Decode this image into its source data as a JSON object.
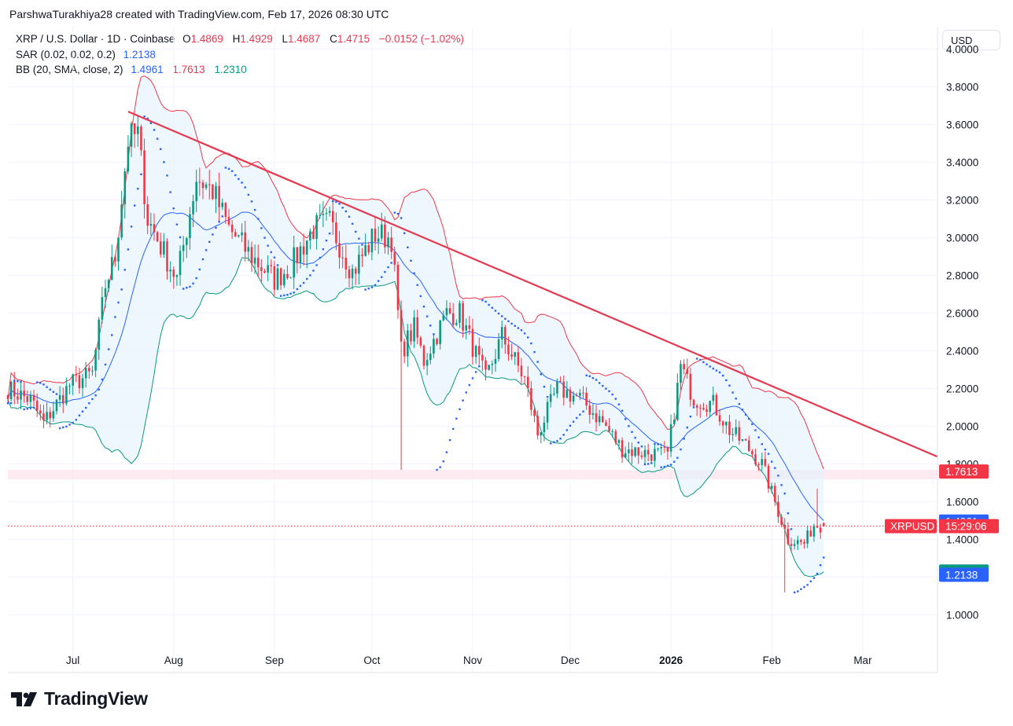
{
  "attribution": "ParshwaTurakhiya28 created with TradingView.com, Feb 17, 2026 08:30 UTC",
  "legend": {
    "symbol": "XRP / U.S. Dollar · 1D · Coinbase",
    "ohlc": [
      {
        "label": "O",
        "value": "1.4869"
      },
      {
        "label": "H",
        "value": "1.4929"
      },
      {
        "label": "L",
        "value": "1.4687"
      },
      {
        "label": "C",
        "value": "1.4715"
      }
    ],
    "change": "−0.0152 (−1.02%)",
    "sar_label": "SAR (0.02, 0.02, 0.2)",
    "sar_value": "1.2138",
    "bb_label": "BB (20, SMA, close, 2)",
    "bb_basis": "1.4961",
    "bb_upper": "1.7613",
    "bb_lower": "1.2310"
  },
  "currency_button": "USD",
  "logo_text": "TradingView",
  "price_tags": {
    "bb_upper": "1.7613",
    "bb_basis": "1.4961",
    "symbol": "XRPUSD",
    "countdown": "15:29:06",
    "bb_lower": "1.2310",
    "sar": "1.2138"
  },
  "colors": {
    "up": "#089981",
    "down": "#f23645",
    "bb_basis": "#2962ff",
    "bb_upper": "#f23645",
    "bb_lower": "#089981",
    "bb_fill": "#e3f2fd",
    "sar": "#2962ff",
    "trendline": "#e53950",
    "zone": "#fce4ec"
  },
  "chart_data": {
    "type": "candlestick",
    "symbol": "XRPUSD",
    "timeframe": "1D",
    "y_axis": {
      "ticks": [
        "4.0000",
        "3.8000",
        "3.6000",
        "3.4000",
        "3.2000",
        "3.0000",
        "2.8000",
        "2.6000",
        "2.4000",
        "2.2000",
        "2.0000",
        "1.8000",
        "1.6000",
        "1.4000",
        "1.2000",
        "1.0000"
      ],
      "range": [
        0.82,
        4.12
      ]
    },
    "x_axis": {
      "start_date": "2025-06-11",
      "end_date": "2026-03-24",
      "ticks": [
        {
          "label": "Jul",
          "date": "2025-07-01",
          "bold": false
        },
        {
          "label": "Aug",
          "date": "2025-08-01",
          "bold": false
        },
        {
          "label": "Sep",
          "date": "2025-09-01",
          "bold": false
        },
        {
          "label": "Oct",
          "date": "2025-10-01",
          "bold": false
        },
        {
          "label": "Nov",
          "date": "2025-11-01",
          "bold": false
        },
        {
          "label": "Dec",
          "date": "2025-12-01",
          "bold": false
        },
        {
          "label": "2026",
          "date": "2026-01-01",
          "bold": true
        },
        {
          "label": "Feb",
          "date": "2026-02-01",
          "bold": false
        },
        {
          "label": "Mar",
          "date": "2026-03-01",
          "bold": false
        }
      ]
    },
    "price_anchors": [
      {
        "date": "2025-06-11",
        "close": 2.2
      },
      {
        "date": "2025-06-18",
        "close": 2.14
      },
      {
        "date": "2025-06-22",
        "close": 2.02
      },
      {
        "date": "2025-06-30",
        "close": 2.22
      },
      {
        "date": "2025-07-07",
        "close": 2.28
      },
      {
        "date": "2025-07-11",
        "close": 2.75
      },
      {
        "date": "2025-07-14",
        "close": 2.9
      },
      {
        "date": "2025-07-18",
        "close": 3.52
      },
      {
        "date": "2025-07-21",
        "close": 3.55
      },
      {
        "date": "2025-07-24",
        "close": 3.1
      },
      {
        "date": "2025-08-02",
        "close": 2.78
      },
      {
        "date": "2025-08-08",
        "close": 3.32
      },
      {
        "date": "2025-08-13",
        "close": 3.25
      },
      {
        "date": "2025-08-18",
        "close": 3.05
      },
      {
        "date": "2025-08-25",
        "close": 2.9
      },
      {
        "date": "2025-09-01",
        "close": 2.78
      },
      {
        "date": "2025-09-06",
        "close": 2.85
      },
      {
        "date": "2025-09-13",
        "close": 3.05
      },
      {
        "date": "2025-09-18",
        "close": 3.08
      },
      {
        "date": "2025-09-25",
        "close": 2.82
      },
      {
        "date": "2025-10-02",
        "close": 3.02
      },
      {
        "date": "2025-10-07",
        "close": 3.0
      },
      {
        "date": "2025-10-10",
        "close": 2.4
      },
      {
        "date": "2025-10-14",
        "close": 2.52
      },
      {
        "date": "2025-10-17",
        "close": 2.35
      },
      {
        "date": "2025-10-24",
        "close": 2.6
      },
      {
        "date": "2025-10-28",
        "close": 2.6
      },
      {
        "date": "2025-11-05",
        "close": 2.25
      },
      {
        "date": "2025-11-10",
        "close": 2.48
      },
      {
        "date": "2025-11-17",
        "close": 2.25
      },
      {
        "date": "2025-11-21",
        "close": 1.96
      },
      {
        "date": "2025-11-27",
        "close": 2.2
      },
      {
        "date": "2025-12-04",
        "close": 2.15
      },
      {
        "date": "2025-12-11",
        "close": 2.02
      },
      {
        "date": "2025-12-17",
        "close": 1.88
      },
      {
        "date": "2025-12-24",
        "close": 1.86
      },
      {
        "date": "2025-12-31",
        "close": 1.85
      },
      {
        "date": "2026-01-04",
        "close": 2.32
      },
      {
        "date": "2026-01-08",
        "close": 2.15
      },
      {
        "date": "2026-01-14",
        "close": 2.12
      },
      {
        "date": "2026-01-19",
        "close": 1.98
      },
      {
        "date": "2026-01-24",
        "close": 1.9
      },
      {
        "date": "2026-01-29",
        "close": 1.8
      },
      {
        "date": "2026-02-03",
        "close": 1.55
      },
      {
        "date": "2026-02-06",
        "close": 1.4
      },
      {
        "date": "2026-02-11",
        "close": 1.38
      },
      {
        "date": "2026-02-14",
        "close": 1.48
      },
      {
        "date": "2026-02-17",
        "close": 1.4715
      }
    ],
    "last_candle": {
      "date": "2026-02-17",
      "open": 1.4869,
      "high": 1.4929,
      "low": 1.4687,
      "close": 1.4715
    },
    "wicks": [
      {
        "date": "2025-10-10",
        "low": 1.77
      },
      {
        "date": "2026-02-05",
        "low": 1.12
      },
      {
        "date": "2026-02-15",
        "high": 1.67
      }
    ],
    "trendline": {
      "from": {
        "date": "2025-07-18",
        "price": 3.67
      },
      "to": {
        "date": "2026-03-24",
        "price": 1.84
      }
    },
    "horizontal_zone": {
      "from_price": 1.72,
      "to_price": 1.77
    },
    "series": [
      {
        "name": "SAR (0.02, 0.02, 0.2)",
        "last": 1.2138
      },
      {
        "name": "BB basis",
        "last": 1.4961
      },
      {
        "name": "BB upper",
        "last": 1.7613
      },
      {
        "name": "BB lower",
        "last": 1.231
      }
    ],
    "last_price": 1.4715
  }
}
